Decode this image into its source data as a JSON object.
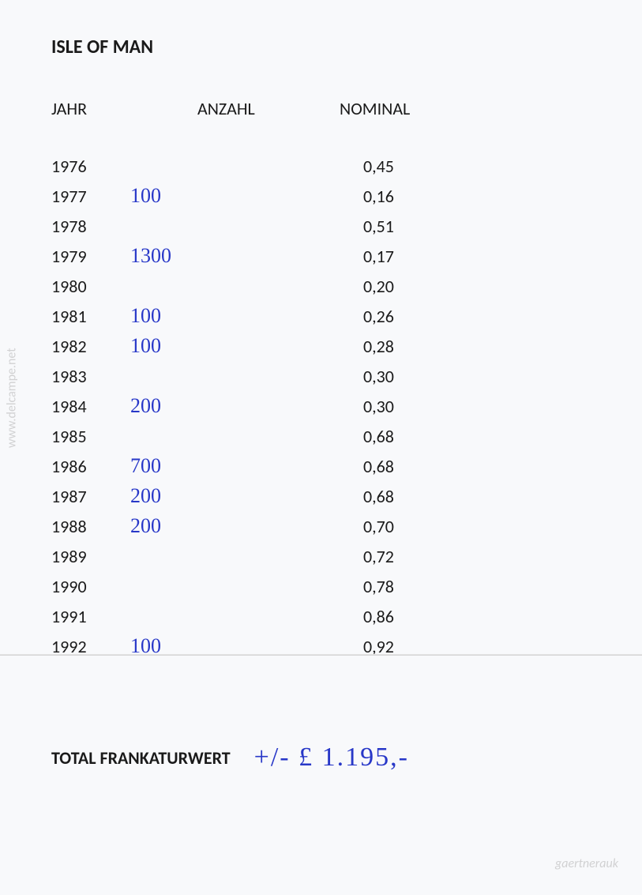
{
  "title": "ISLE OF MAN",
  "columns": {
    "jahr": "JAHR",
    "anzahl": "ANZAHL",
    "nominal": "NOMINAL"
  },
  "rows": [
    {
      "jahr": "1976",
      "anzahl": "",
      "nominal": "0,45"
    },
    {
      "jahr": "1977",
      "anzahl": "100",
      "nominal": "0,16"
    },
    {
      "jahr": "1978",
      "anzahl": "",
      "nominal": "0,51"
    },
    {
      "jahr": "1979",
      "anzahl": "1300",
      "nominal": "0,17"
    },
    {
      "jahr": "1980",
      "anzahl": "",
      "nominal": "0,20"
    },
    {
      "jahr": "1981",
      "anzahl": "100",
      "nominal": "0,26"
    },
    {
      "jahr": "1982",
      "anzahl": "100",
      "nominal": "0,28"
    },
    {
      "jahr": "1983",
      "anzahl": "",
      "nominal": "0,30"
    },
    {
      "jahr": "1984",
      "anzahl": "200",
      "nominal": "0,30"
    },
    {
      "jahr": "1985",
      "anzahl": "",
      "nominal": "0,68"
    },
    {
      "jahr": "1986",
      "anzahl": "700",
      "nominal": "0,68"
    },
    {
      "jahr": "1987",
      "anzahl": "200",
      "nominal": "0,68"
    },
    {
      "jahr": "1988",
      "anzahl": "200",
      "nominal": "0,70"
    },
    {
      "jahr": "1989",
      "anzahl": "",
      "nominal": "0,72"
    },
    {
      "jahr": "1990",
      "anzahl": "",
      "nominal": "0,78"
    },
    {
      "jahr": "1991",
      "anzahl": "",
      "nominal": "0,86"
    },
    {
      "jahr": "1992",
      "anzahl": "100",
      "nominal": "0,92"
    }
  ],
  "total": {
    "label": "TOTAL FRANKATURWERT",
    "value": "+/- £ 1.195,-"
  },
  "watermarks": {
    "left": "www.delcampe.net",
    "right": "gaertnerauk"
  },
  "styling": {
    "background_color": "#f8f9fb",
    "printed_text_color": "#1a1a1a",
    "handwritten_color": "#2838c8",
    "watermark_color": "rgba(150,150,150,0.4)",
    "title_fontsize": 24,
    "header_fontsize": 22,
    "cell_fontsize": 22,
    "handwritten_fontsize": 26,
    "total_value_fontsize": 34
  }
}
